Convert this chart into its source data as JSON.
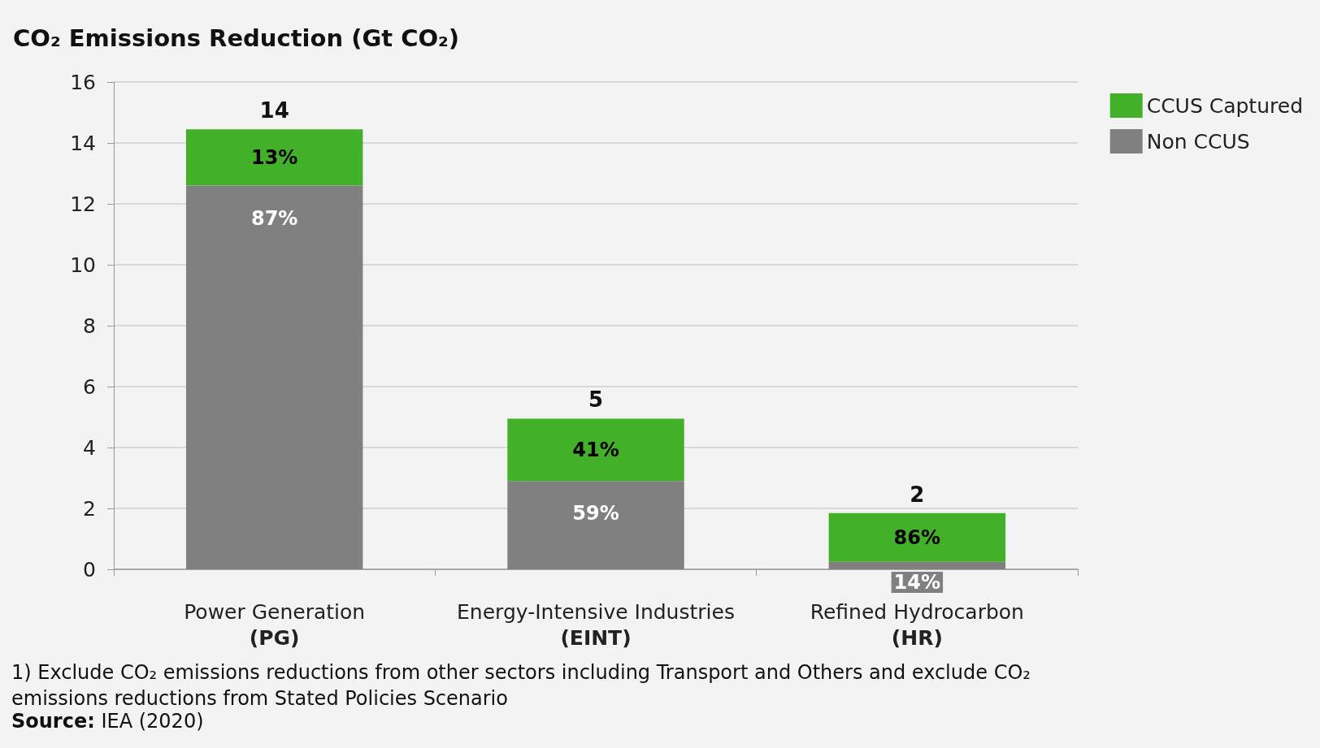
{
  "chart_data": {
    "type": "bar",
    "title": "CO₂ Emissions Reduction (Gt CO₂)",
    "categories": [
      "Power Generation\n(PG)",
      "Energy-Intensive Industries\n(EINT)",
      "Refined Hydrocarbon\n(HR)"
    ],
    "series": [
      {
        "name": "Non CCUS",
        "color": "#808080",
        "values": [
          12.6,
          2.9,
          0.25
        ]
      },
      {
        "name": "CCUS Captured",
        "color": "#43b02a",
        "values": [
          1.85,
          2.05,
          1.6
        ]
      }
    ],
    "stacked": true,
    "totals": [
      "14",
      "5",
      "2"
    ],
    "ylim": [
      0,
      16
    ],
    "yticks": [
      0,
      2,
      4,
      6,
      8,
      10,
      12,
      14,
      16
    ],
    "grid": "y",
    "legend": "top right",
    "annotations": [
      {
        "text": "87%",
        "x": "Power Generation\n(PG)",
        "y": 12.6
      },
      {
        "text": "13%",
        "x": "Power Generation\n(PG)",
        "y": 14.45
      },
      {
        "text": "59%",
        "x": "Energy-Intensive Industries\n(EINT)",
        "y": 2.9
      },
      {
        "text": "41%",
        "x": "Energy-Intensive Industries\n(EINT)",
        "y": 4.95
      },
      {
        "text": "14%",
        "x": "Refined Hydrocarbon\n(HR)",
        "y": 0.25
      },
      {
        "text": "86%",
        "x": "Refined Hydrocarbon\n(HR)",
        "y": 1.85
      },
      "1) Exclude CO₂ emissions reductions from other sectors including Transport and Others and exclude CO₂\nemissions reductions from Stated Policies Scenario",
      "Source: IEA (2020)"
    ]
  }
}
